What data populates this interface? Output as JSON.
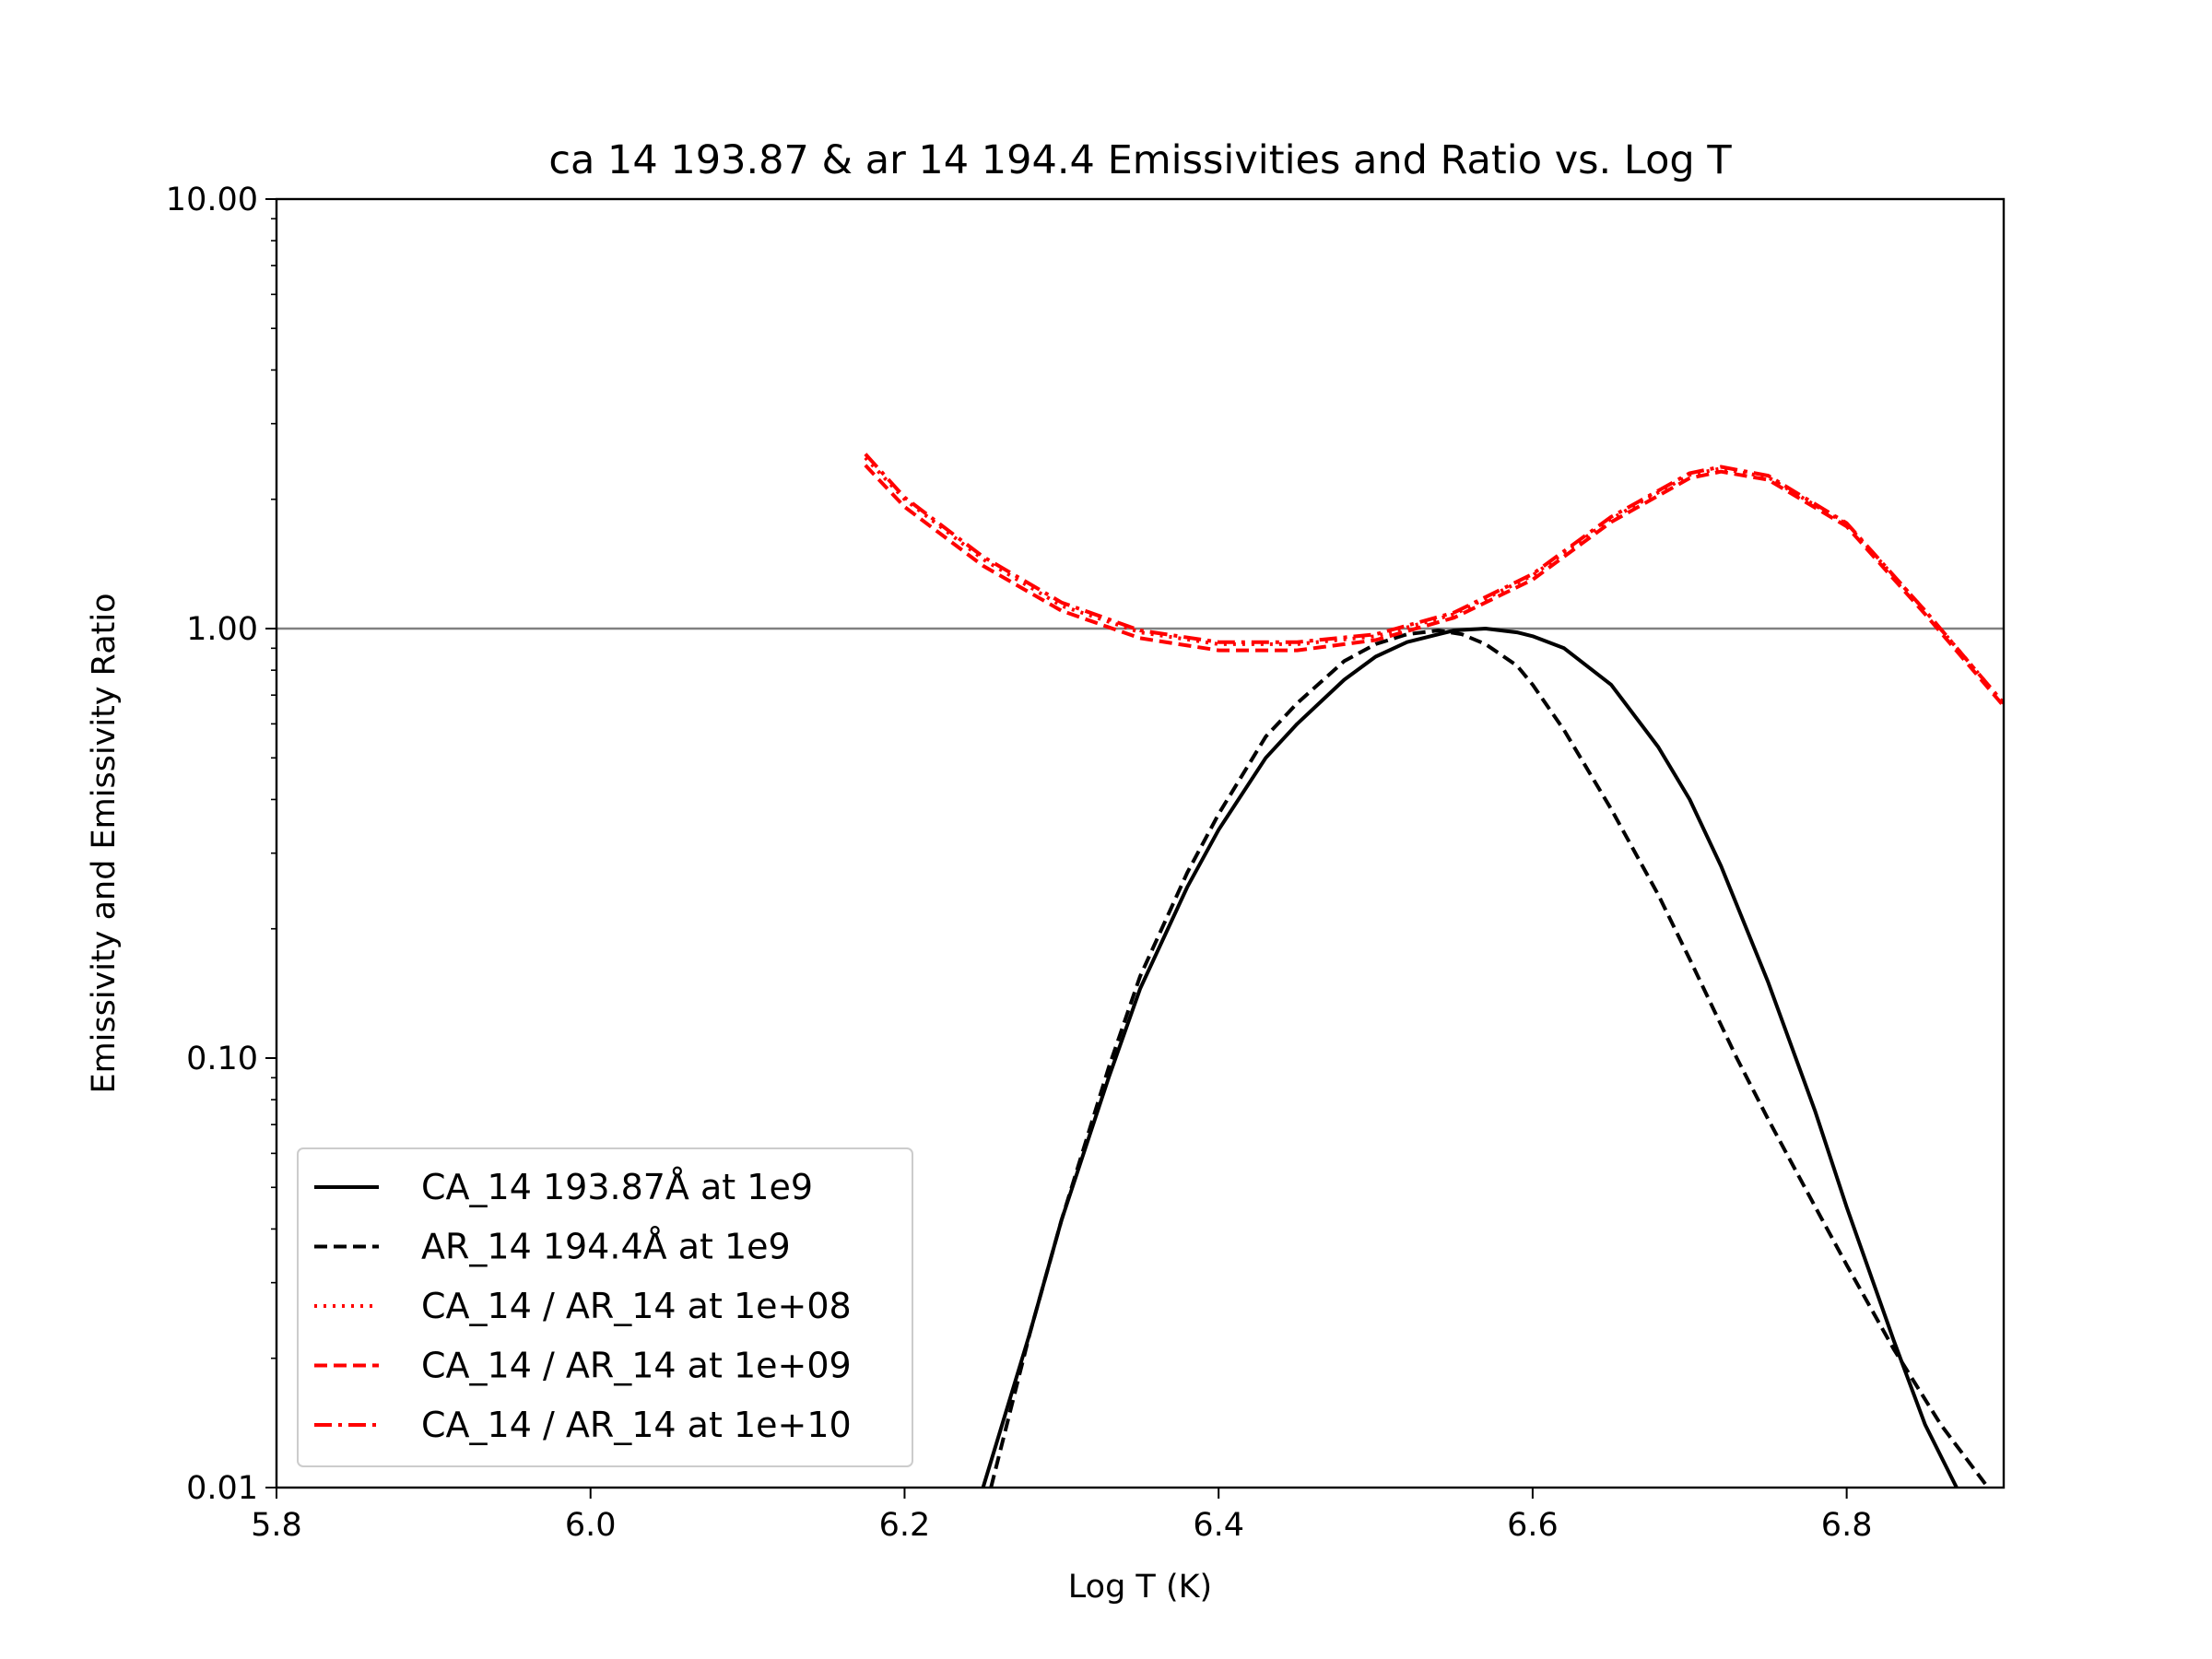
{
  "chart_data": {
    "type": "line",
    "title": "ca 14 193.87 & ar 14 194.4 Emissivities and Ratio vs. Log T",
    "xlabel": "Log T (K)",
    "ylabel": "Emissivity and Emissivity Ratio",
    "xlim": [
      5.8,
      6.9
    ],
    "ylim": [
      0.01,
      10
    ],
    "yscale": "log",
    "xticks": [
      5.8,
      6.0,
      6.2,
      6.4,
      6.6,
      6.8
    ],
    "xtick_labels": [
      "5.8",
      "6.0",
      "6.2",
      "6.4",
      "6.6",
      "6.8"
    ],
    "yticks": [
      0.01,
      0.1,
      1,
      10
    ],
    "ytick_labels": [
      "0.01",
      "0.10",
      "1.00",
      "10.00"
    ],
    "reference_line": {
      "y": 1.0,
      "color": "#808080"
    },
    "legend_position": "lower-left",
    "grid": false,
    "series": [
      {
        "name": "CA_14 193.87Å at 1e9",
        "color": "#000000",
        "style": "solid",
        "x": [
          6.25,
          6.28,
          6.3,
          6.33,
          6.35,
          6.38,
          6.4,
          6.43,
          6.45,
          6.48,
          6.5,
          6.52,
          6.54,
          6.55,
          6.57,
          6.59,
          6.6,
          6.62,
          6.65,
          6.68,
          6.7,
          6.72,
          6.75,
          6.78,
          6.8,
          6.83,
          6.85,
          6.87
        ],
        "y": [
          0.01,
          0.023,
          0.042,
          0.09,
          0.145,
          0.25,
          0.34,
          0.5,
          0.6,
          0.76,
          0.86,
          0.93,
          0.97,
          0.99,
          1.0,
          0.98,
          0.96,
          0.9,
          0.74,
          0.53,
          0.4,
          0.28,
          0.15,
          0.075,
          0.045,
          0.022,
          0.014,
          0.01
        ]
      },
      {
        "name": "AR_14 194.4Å at 1e9",
        "color": "#000000",
        "style": "dashed",
        "x": [
          6.255,
          6.28,
          6.3,
          6.33,
          6.35,
          6.38,
          6.4,
          6.43,
          6.45,
          6.48,
          6.5,
          6.52,
          6.54,
          6.555,
          6.57,
          6.59,
          6.6,
          6.62,
          6.65,
          6.68,
          6.7,
          6.73,
          6.75,
          6.78,
          6.8,
          6.83,
          6.86,
          6.89
        ],
        "y": [
          0.01,
          0.023,
          0.042,
          0.095,
          0.155,
          0.27,
          0.37,
          0.56,
          0.67,
          0.84,
          0.92,
          0.97,
          0.99,
          0.97,
          0.92,
          0.82,
          0.74,
          0.58,
          0.38,
          0.24,
          0.17,
          0.1,
          0.072,
          0.045,
          0.033,
          0.021,
          0.014,
          0.01
        ]
      },
      {
        "name": "CA_14 / AR_14 at 1e+08",
        "color": "#ff0000",
        "style": "dotted",
        "x": [
          6.175,
          6.2,
          6.25,
          6.3,
          6.35,
          6.4,
          6.45,
          6.5,
          6.55,
          6.6,
          6.65,
          6.7,
          6.72,
          6.75,
          6.8,
          6.85,
          6.9
        ],
        "y": [
          2.5,
          2.0,
          1.45,
          1.13,
          0.98,
          0.92,
          0.92,
          0.96,
          1.08,
          1.33,
          1.8,
          2.28,
          2.36,
          2.25,
          1.75,
          1.1,
          0.67
        ]
      },
      {
        "name": "CA_14 / AR_14 at 1e+09",
        "color": "#ff0000",
        "style": "dashed",
        "x": [
          6.175,
          6.2,
          6.25,
          6.3,
          6.35,
          6.4,
          6.45,
          6.5,
          6.55,
          6.6,
          6.65,
          6.7,
          6.72,
          6.75,
          6.8,
          6.85,
          6.9
        ],
        "y": [
          2.4,
          1.92,
          1.4,
          1.1,
          0.95,
          0.89,
          0.89,
          0.94,
          1.06,
          1.3,
          1.77,
          2.24,
          2.32,
          2.22,
          1.73,
          1.08,
          0.66
        ]
      },
      {
        "name": "CA_14 / AR_14 at 1e+10",
        "color": "#ff0000",
        "style": "dashdot",
        "x": [
          6.175,
          6.2,
          6.25,
          6.3,
          6.35,
          6.4,
          6.45,
          6.5,
          6.55,
          6.6,
          6.65,
          6.7,
          6.72,
          6.75,
          6.8,
          6.85,
          6.9
        ],
        "y": [
          2.55,
          2.02,
          1.47,
          1.15,
          0.99,
          0.93,
          0.93,
          0.97,
          1.09,
          1.34,
          1.82,
          2.3,
          2.38,
          2.27,
          1.76,
          1.1,
          0.67
        ]
      }
    ]
  }
}
